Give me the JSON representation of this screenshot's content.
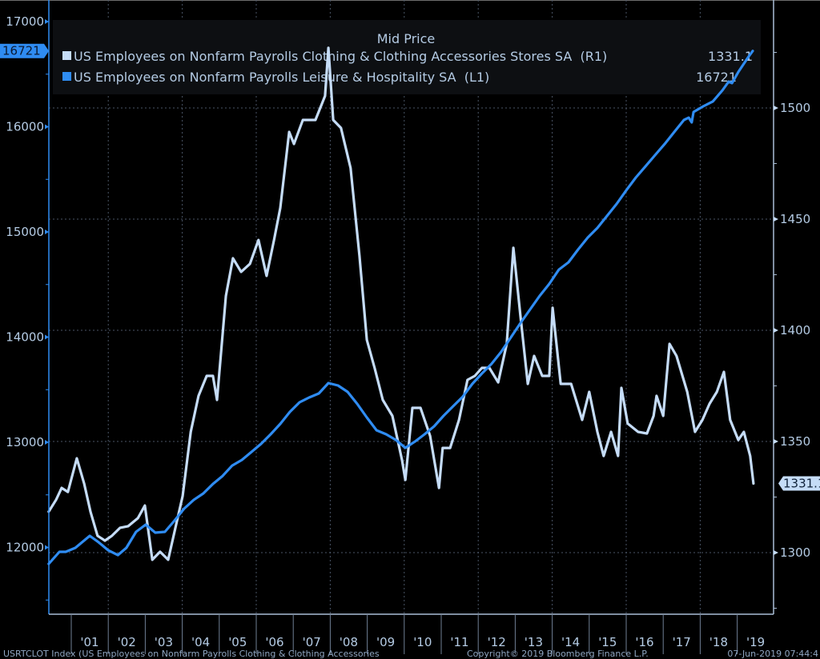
{
  "chart_data": {
    "type": "line",
    "title": "Mid Price",
    "xlabel": "",
    "xlim": [
      2000.4,
      2019.9
    ],
    "x_tick_labels": [
      "'01",
      "'02",
      "'03",
      "'04",
      "'05",
      "'06",
      "'07",
      "'08",
      "'09",
      "'10",
      "'11",
      "'12",
      "'13",
      "'14",
      "'15",
      "'16",
      "'17",
      "'18",
      "'19"
    ],
    "x_tick_years": [
      2001,
      2002,
      2003,
      2004,
      2005,
      2006,
      2007,
      2008,
      2009,
      2010,
      2011,
      2012,
      2013,
      2014,
      2015,
      2016,
      2017,
      2018,
      2019
    ],
    "left_axis": {
      "ylim": [
        11450,
        17000
      ],
      "ticks": [
        12000,
        13000,
        14000,
        15000,
        16000,
        17000
      ],
      "tick_labels": [
        "12000",
        "13000",
        "14000",
        "15000",
        "16000",
        "17000"
      ],
      "last_value_label": "16721",
      "color": "#2f8cf2"
    },
    "right_axis": {
      "ylim": [
        1270,
        1540
      ],
      "ticks": [
        1300,
        1350,
        1400,
        1450,
        1500
      ],
      "tick_labels": [
        "1300",
        "1350",
        "1400",
        "1450",
        "1500"
      ],
      "last_value_label": "1331.1",
      "color": "#c5dcf7"
    },
    "grid": true,
    "legend_position": "top",
    "series": [
      {
        "name": "US Employees on Nonfarm Payrolls Clothing & Clothing Accessories Stores SA  (R1)",
        "last_value": "1331.1",
        "axis": "right",
        "color": "#c5dcf7",
        "x": [
          2000.39,
          2000.59,
          2000.74,
          2000.91,
          2001.15,
          2001.35,
          2001.52,
          2001.71,
          2001.91,
          2002.1,
          2002.32,
          2002.54,
          2002.8,
          2002.99,
          2003.19,
          2003.4,
          2003.62,
          2003.84,
          2004.01,
          2004.23,
          2004.44,
          2004.66,
          2004.83,
          2004.94,
          2005.18,
          2005.37,
          2005.59,
          2005.83,
          2006.06,
          2006.28,
          2006.48,
          2006.65,
          2006.89,
          2007.02,
          2007.26,
          2007.6,
          2007.86,
          2007.95,
          2008.08,
          2008.29,
          2008.55,
          2008.79,
          2008.99,
          2009.2,
          2009.42,
          2009.68,
          2009.94,
          2010.03,
          2010.22,
          2010.44,
          2010.7,
          2010.94,
          2011.04,
          2011.24,
          2011.48,
          2011.71,
          2011.91,
          2012.1,
          2012.3,
          2012.54,
          2012.77,
          2012.95,
          2013.14,
          2013.34,
          2013.51,
          2013.73,
          2013.92,
          2014.01,
          2014.23,
          2014.51,
          2014.81,
          2015.0,
          2015.22,
          2015.39,
          2015.59,
          2015.78,
          2015.87,
          2016.04,
          2016.32,
          2016.56,
          2016.74,
          2016.82,
          2017.0,
          2017.17,
          2017.36,
          2017.65,
          2017.86,
          2018.06,
          2018.25,
          2018.45,
          2018.64,
          2018.81,
          2019.03,
          2019.18,
          2019.35,
          2019.44
        ],
        "values": [
          1318.4,
          1323.8,
          1329.1,
          1327.3,
          1342.4,
          1330.9,
          1318.4,
          1307.6,
          1305.4,
          1307.6,
          1311.2,
          1311.9,
          1315.5,
          1321.2,
          1296.8,
          1300.4,
          1296.8,
          1313.0,
          1325.5,
          1354.3,
          1370.5,
          1379.5,
          1379.5,
          1368.7,
          1415.5,
          1432.4,
          1426.3,
          1429.9,
          1440.6,
          1424.5,
          1440.6,
          1455.0,
          1489.2,
          1483.8,
          1494.6,
          1494.6,
          1505.4,
          1527.0,
          1494.6,
          1491.0,
          1473.0,
          1433.5,
          1395.7,
          1383.1,
          1368.7,
          1361.5,
          1341.7,
          1332.7,
          1365.1,
          1365.1,
          1352.5,
          1329.1,
          1347.1,
          1347.1,
          1359.7,
          1377.7,
          1379.5,
          1383.1,
          1383.1,
          1376.6,
          1393.9,
          1437.1,
          1406.5,
          1375.9,
          1388.5,
          1379.5,
          1379.5,
          1410.1,
          1375.9,
          1375.9,
          1359.7,
          1372.3,
          1354.3,
          1343.5,
          1354.3,
          1343.5,
          1374.1,
          1358.1,
          1354.3,
          1353.6,
          1361.5,
          1370.5,
          1361.5,
          1393.9,
          1388.5,
          1372.3,
          1354.3,
          1359.7,
          1366.9,
          1372.3,
          1381.3,
          1359.7,
          1350.7,
          1354.3,
          1343.5,
          1331.1
        ]
      },
      {
        "name": "US Employees on Nonfarm Payrolls Leisure & Hospitality SA  (L1)",
        "last_value": "16721",
        "axis": "left",
        "color": "#2f8cf2",
        "x": [
          2000.39,
          2000.68,
          2000.85,
          2001.11,
          2001.5,
          2001.74,
          2002.0,
          2002.26,
          2002.49,
          2002.75,
          2003.01,
          2003.27,
          2003.53,
          2003.79,
          2004.05,
          2004.31,
          2004.57,
          2004.83,
          2005.09,
          2005.35,
          2005.61,
          2005.87,
          2006.13,
          2006.39,
          2006.65,
          2006.91,
          2007.17,
          2007.43,
          2007.69,
          2007.95,
          2008.21,
          2008.47,
          2008.73,
          2008.99,
          2009.25,
          2009.51,
          2009.77,
          2010.03,
          2010.29,
          2010.55,
          2010.81,
          2011.06,
          2011.32,
          2011.58,
          2011.84,
          2012.1,
          2012.36,
          2012.62,
          2012.88,
          2013.14,
          2013.4,
          2013.66,
          2013.92,
          2014.18,
          2014.44,
          2014.7,
          2014.96,
          2015.22,
          2015.48,
          2015.74,
          2016.0,
          2016.26,
          2016.52,
          2016.78,
          2017.04,
          2017.3,
          2017.56,
          2017.69,
          2017.77,
          2017.82,
          2018.08,
          2018.34,
          2018.6,
          2018.77,
          2018.86,
          2019.03,
          2019.29,
          2019.42
        ],
        "values": [
          11843,
          11958,
          11958,
          11996,
          12110,
          12049,
          11973,
          11927,
          11996,
          12148,
          12217,
          12141,
          12148,
          12255,
          12369,
          12452,
          12513,
          12604,
          12680,
          12779,
          12832,
          12908,
          12985,
          13076,
          13175,
          13289,
          13380,
          13426,
          13464,
          13563,
          13540,
          13479,
          13365,
          13236,
          13114,
          13076,
          13023,
          12947,
          13007,
          13076,
          13152,
          13251,
          13342,
          13433,
          13555,
          13654,
          13745,
          13859,
          13996,
          14133,
          14262,
          14392,
          14506,
          14642,
          14711,
          14833,
          14947,
          15038,
          15152,
          15266,
          15395,
          15517,
          15623,
          15730,
          15836,
          15951,
          16065,
          16087,
          16042,
          16141,
          16194,
          16240,
          16346,
          16430,
          16415,
          16521,
          16658,
          16721
        ]
      }
    ]
  },
  "footer": {
    "source": "USRTCLOT Index (US Employees on Nonfarm Payrolls Clothing & Clothing Accessories",
    "copyright": "Copyright© 2019 Bloomberg Finance L.P.",
    "timestamp": "07-Jun-2019 07:44:4"
  }
}
